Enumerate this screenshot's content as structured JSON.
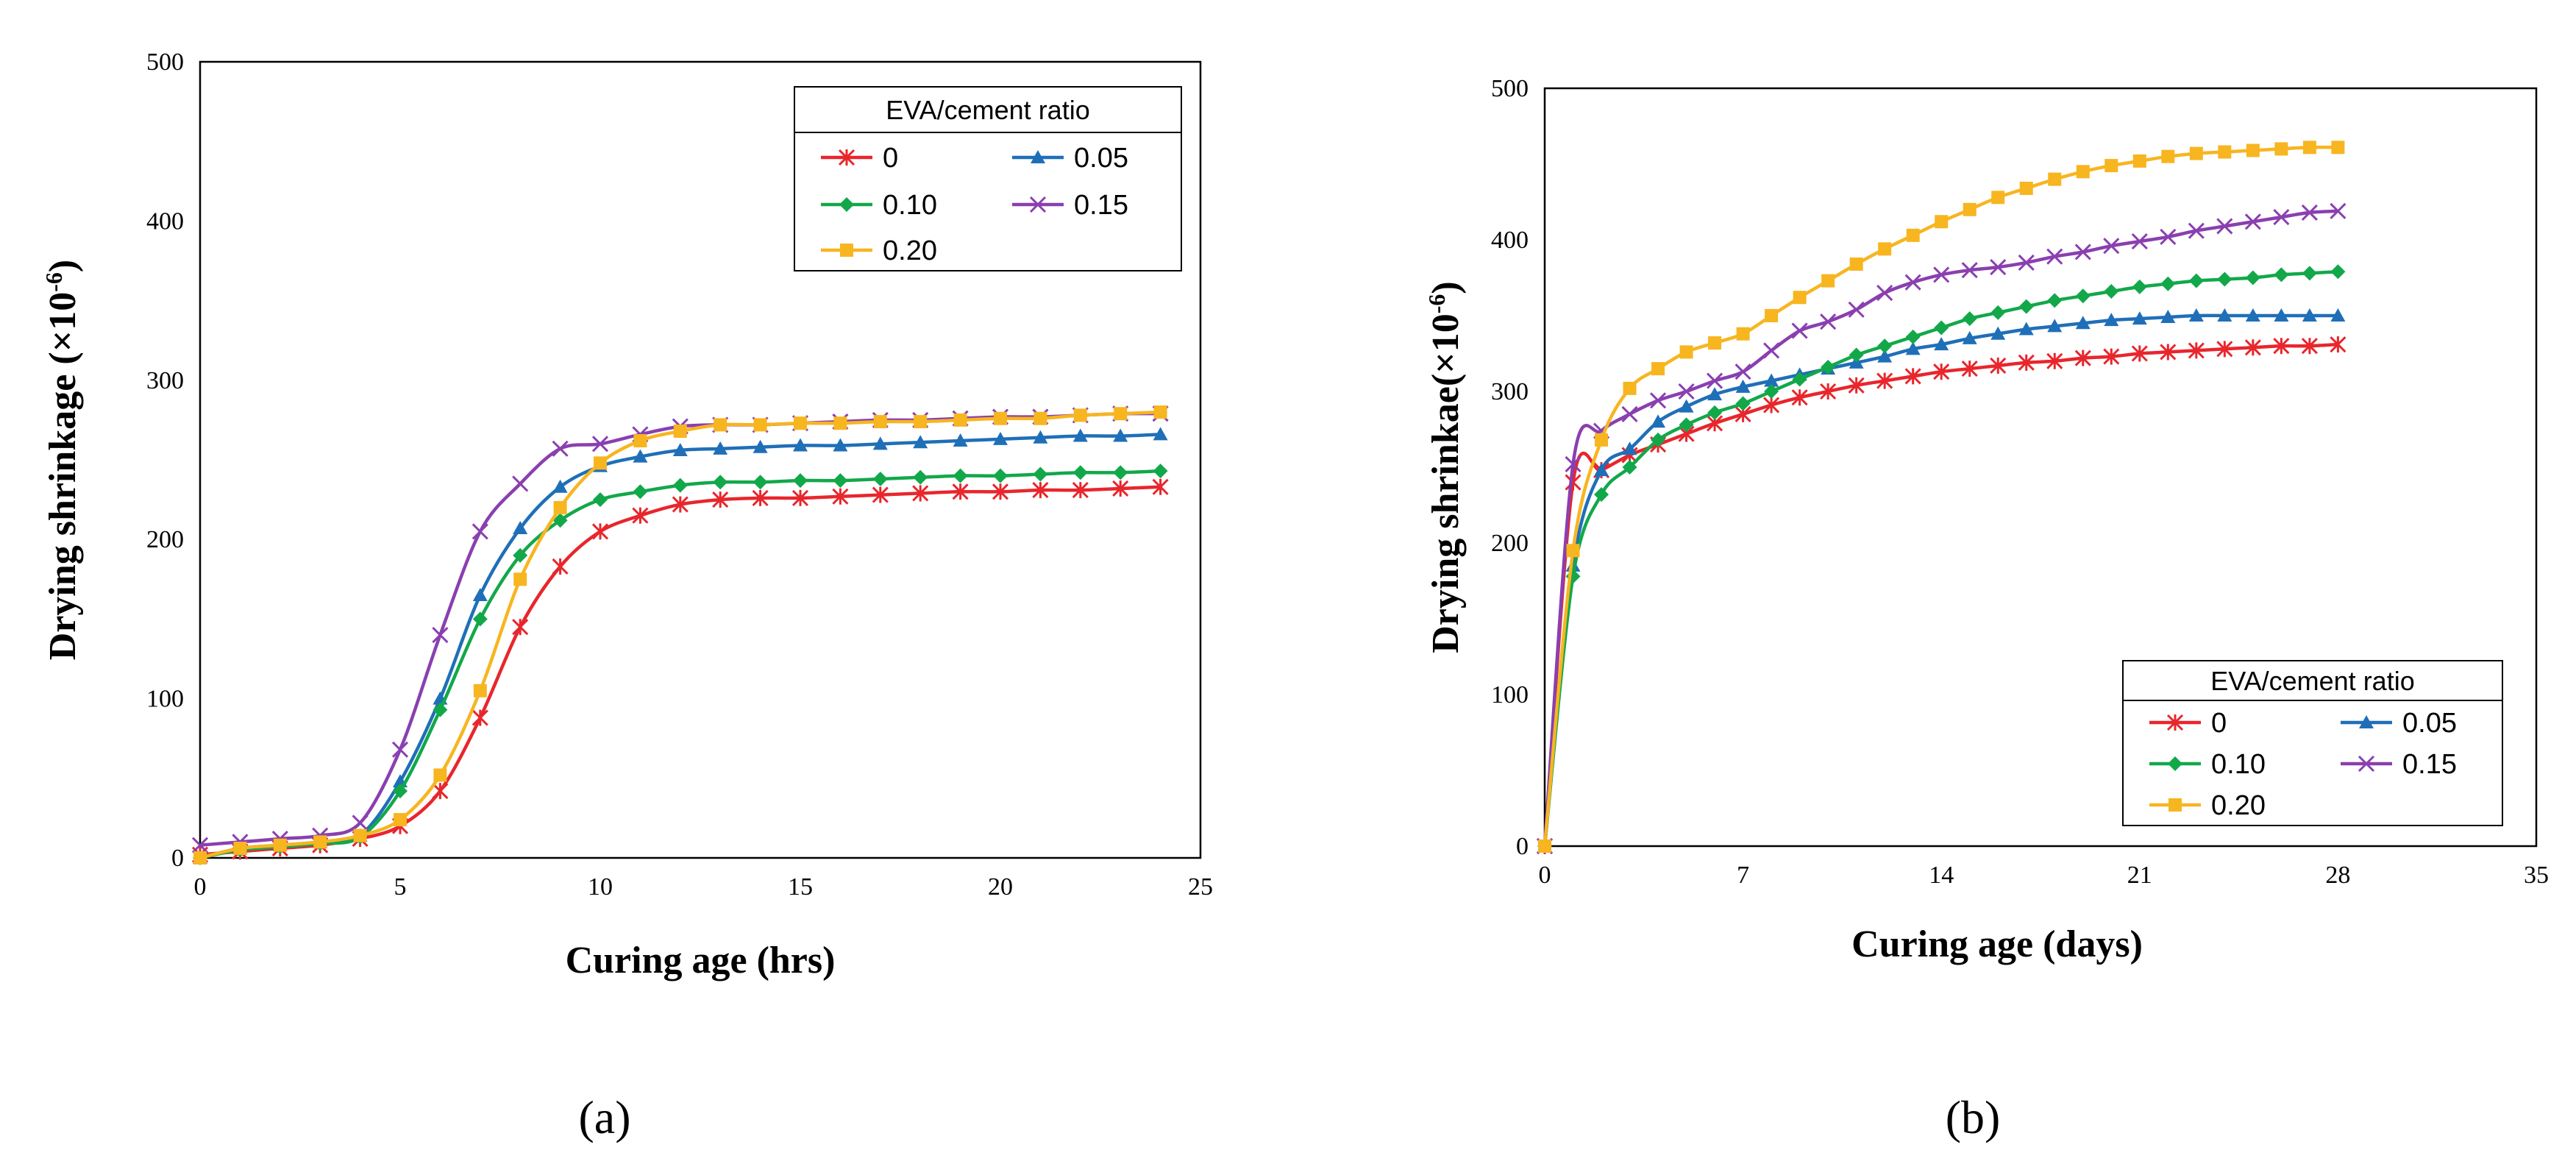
{
  "chart_data": [
    {
      "type": "line",
      "panel_label": "(a)",
      "xlabel": "Curing age (hrs)",
      "ylabel": "Drying shrinkage (×10",
      "ylabel_sup": "-6",
      "ylabel_end": ")",
      "xlim": [
        0,
        25
      ],
      "ylim": [
        0,
        500
      ],
      "xticks": [
        "0",
        "5",
        "10",
        "15",
        "20",
        "25"
      ],
      "yticks": [
        "0",
        "100",
        "200",
        "300",
        "400",
        "500"
      ],
      "grid": false,
      "legend": {
        "title": "EVA/cement ratio",
        "placement": "top-right"
      },
      "x": [
        0,
        1,
        2,
        3,
        4,
        5,
        6,
        7,
        8,
        9,
        10,
        11,
        12,
        13,
        14,
        15,
        16,
        17,
        18,
        19,
        20,
        21,
        22,
        23,
        24
      ],
      "series": [
        {
          "name": "0",
          "color": "#e8262c",
          "marker": "asterisk",
          "values": [
            2,
            4,
            6,
            8,
            12,
            20,
            42,
            88,
            145,
            183,
            205,
            215,
            222,
            225,
            226,
            226,
            227,
            228,
            229,
            230,
            230,
            231,
            231,
            232,
            233
          ]
        },
        {
          "name": "0.05",
          "color": "#1f6fb8",
          "marker": "triangle",
          "values": [
            0,
            6,
            8,
            10,
            14,
            48,
            100,
            165,
            207,
            233,
            246,
            252,
            256,
            257,
            258,
            259,
            259,
            260,
            261,
            262,
            263,
            264,
            265,
            265,
            266
          ]
        },
        {
          "name": "0.10",
          "color": "#12a84a",
          "marker": "diamond",
          "values": [
            0,
            5,
            7,
            9,
            13,
            42,
            93,
            150,
            190,
            212,
            225,
            230,
            234,
            236,
            236,
            237,
            237,
            238,
            239,
            240,
            240,
            241,
            242,
            242,
            243
          ]
        },
        {
          "name": "0.15",
          "color": "#8a3fb0",
          "marker": "x",
          "values": [
            8,
            10,
            12,
            14,
            22,
            68,
            140,
            205,
            235,
            257,
            260,
            266,
            271,
            272,
            272,
            273,
            274,
            275,
            275,
            276,
            277,
            277,
            278,
            279,
            279
          ]
        },
        {
          "name": "0.20",
          "color": "#f7b520",
          "marker": "square",
          "values": [
            0,
            6,
            8,
            10,
            14,
            24,
            52,
            105,
            175,
            220,
            248,
            262,
            268,
            272,
            272,
            273,
            273,
            274,
            274,
            275,
            276,
            276,
            278,
            279,
            280
          ]
        }
      ]
    },
    {
      "type": "line",
      "panel_label": "(b)",
      "xlabel": "Curing age (days)",
      "ylabel": "Drying shrinkae(×10",
      "ylabel_sup": "-6",
      "ylabel_end": ")",
      "xlim": [
        0,
        35
      ],
      "ylim": [
        0,
        500
      ],
      "xticks": [
        "0",
        "7",
        "14",
        "21",
        "28",
        "35"
      ],
      "yticks": [
        "0",
        "100",
        "200",
        "300",
        "400",
        "500"
      ],
      "grid": false,
      "legend": {
        "title": "EVA/cement ratio",
        "placement": "bottom-right"
      },
      "x": [
        0,
        1,
        2,
        3,
        4,
        5,
        6,
        7,
        8,
        9,
        10,
        11,
        12,
        13,
        14,
        15,
        16,
        17,
        18,
        19,
        20,
        21,
        22,
        23,
        24,
        25,
        26,
        27,
        28
      ],
      "series": [
        {
          "name": "0",
          "color": "#e8262c",
          "marker": "asterisk",
          "values": [
            0,
            240,
            248,
            258,
            265,
            272,
            279,
            285,
            291,
            296,
            300,
            304,
            307,
            310,
            313,
            315,
            317,
            319,
            320,
            322,
            323,
            325,
            326,
            327,
            328,
            329,
            330,
            330,
            331
          ]
        },
        {
          "name": "0.05",
          "color": "#1f6fb8",
          "marker": "triangle",
          "values": [
            0,
            185,
            248,
            262,
            280,
            290,
            298,
            303,
            307,
            311,
            315,
            319,
            323,
            328,
            331,
            335,
            338,
            341,
            343,
            345,
            347,
            348,
            349,
            350,
            350,
            350,
            350,
            350,
            350
          ]
        },
        {
          "name": "0.10",
          "color": "#12a84a",
          "marker": "diamond",
          "values": [
            0,
            178,
            232,
            250,
            268,
            278,
            286,
            292,
            300,
            308,
            316,
            324,
            330,
            336,
            342,
            348,
            352,
            356,
            360,
            363,
            366,
            369,
            371,
            373,
            374,
            375,
            377,
            378,
            379
          ]
        },
        {
          "name": "0.15",
          "color": "#8a3fb0",
          "marker": "x",
          "values": [
            0,
            252,
            274,
            285,
            294,
            300,
            307,
            313,
            327,
            340,
            346,
            354,
            365,
            372,
            377,
            380,
            382,
            385,
            389,
            392,
            396,
            399,
            402,
            406,
            409,
            412,
            415,
            418,
            419
          ]
        },
        {
          "name": "0.20",
          "color": "#f7b520",
          "marker": "square",
          "values": [
            0,
            195,
            268,
            302,
            315,
            326,
            332,
            338,
            350,
            362,
            373,
            384,
            394,
            403,
            412,
            420,
            428,
            434,
            440,
            445,
            449,
            452,
            455,
            457,
            458,
            459,
            460,
            461,
            461
          ]
        }
      ]
    }
  ]
}
